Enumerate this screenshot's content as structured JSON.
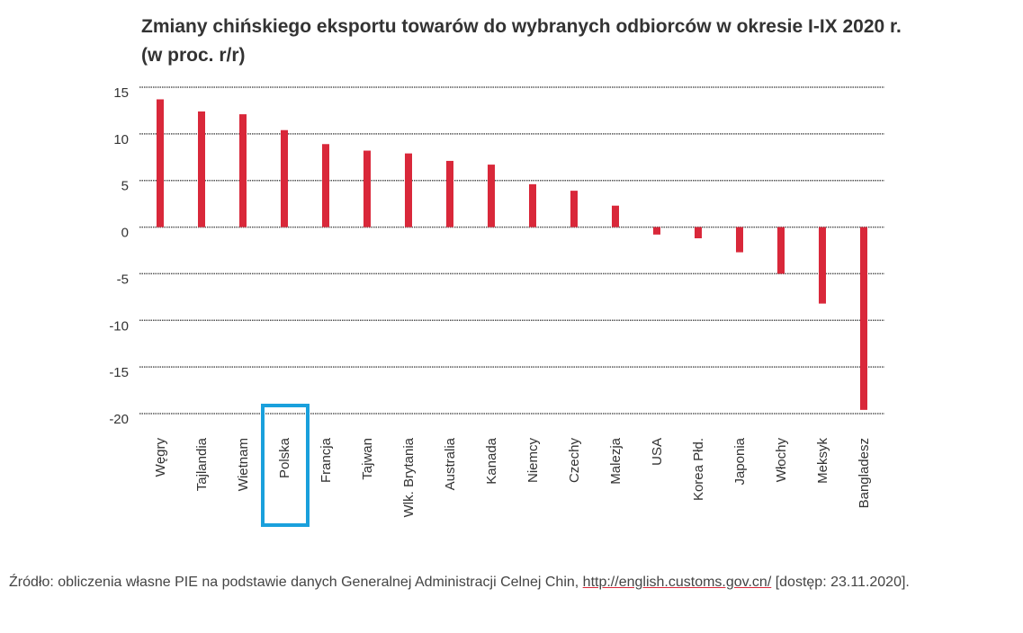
{
  "chart_data": {
    "type": "bar",
    "title_line1": "Zmiany chińskiego eksportu towarów do wybranych odbiorców w okresie I-IX 2020 r.",
    "title_line2": "(w proc. r/r)",
    "xlabel": "",
    "ylabel": "",
    "categories": [
      "Węgry",
      "Tajlandia",
      "Wietnam",
      "Polska",
      "Francja",
      "Tajwan",
      "Wlk. Brytania",
      "Australia",
      "Kanada",
      "Niemcy",
      "Czechy",
      "Malezja",
      "USA",
      "Korea Płd.",
      "Japonia",
      "Włochy",
      "Meksyk",
      "Bangladesz"
    ],
    "values": [
      13.7,
      12.4,
      12.1,
      10.4,
      8.9,
      8.2,
      7.9,
      7.1,
      6.7,
      4.6,
      3.9,
      2.3,
      -0.8,
      -1.2,
      -2.7,
      -5.0,
      -8.2,
      -19.6
    ],
    "ylim": [
      -20,
      15
    ],
    "yticks": [
      15,
      10,
      5,
      0,
      -5,
      -10,
      -15,
      -20
    ],
    "ytick_labels": [
      "15",
      "10",
      "5",
      "0",
      "-5",
      "-10",
      "-15",
      "-20"
    ],
    "grid": true,
    "highlighted_category": "Polska",
    "colors": {
      "bar": "#d9283a",
      "highlight": "#1aa0dc",
      "grid": "#555555"
    }
  },
  "source": {
    "text": "Źródło: obliczenia własne PIE na podstawie danych Generalnej Administracji Celnej Chin, ",
    "link": "http://english.customs.gov.cn/",
    "suffix": " [dostęp: 23.11.2020]."
  }
}
